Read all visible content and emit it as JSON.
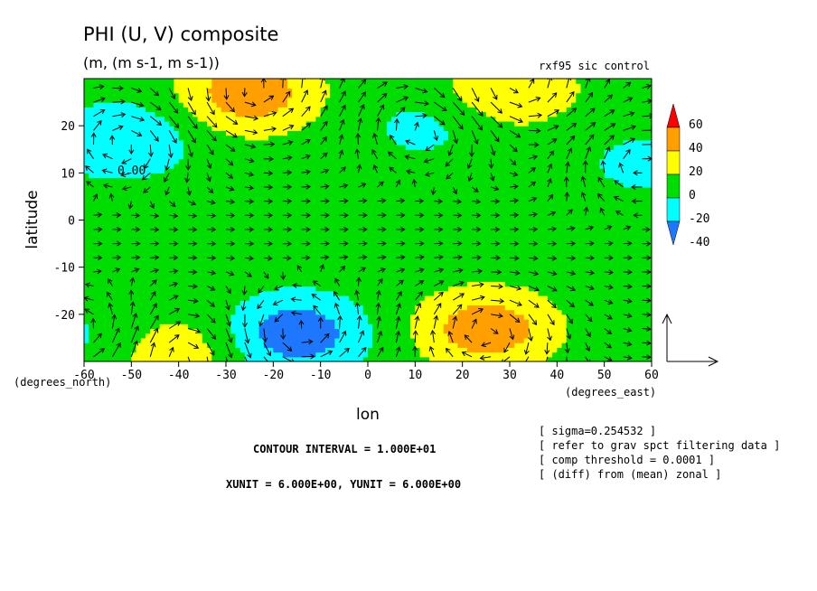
{
  "chart_data": {
    "type": "heatmap",
    "title": "PHI (U, V) composite",
    "subtitle": "(m, (m s-1, m s-1))",
    "top_right_label": "rxf95 sic control",
    "xlabel": "lon",
    "ylabel": "latitude",
    "x_units": "(degrees_east)",
    "y_units": "(degrees_north)",
    "xlim": [
      -60,
      60
    ],
    "ylim": [
      -30,
      30
    ],
    "x_ticks": [
      -60,
      -50,
      -40,
      -30,
      -20,
      -10,
      0,
      10,
      20,
      30,
      40,
      50,
      60
    ],
    "x_tick_labels": [
      "-60",
      "-50",
      "-40",
      "-30",
      "-20",
      "-10",
      "0",
      "10",
      "20",
      "30",
      "40",
      "50",
      "60"
    ],
    "y_ticks": [
      -20,
      -10,
      0,
      10,
      20
    ],
    "y_tick_labels": [
      "-20",
      "-10",
      "0",
      "10",
      "20"
    ],
    "contour_label": "0.00",
    "colorbar": {
      "levels": [
        -40,
        -20,
        0,
        20,
        40,
        60
      ],
      "labels": [
        "-40",
        "-20",
        "0",
        "20",
        "40",
        "60"
      ],
      "colors": [
        "#1e78ff",
        "#00ffff",
        "#00dd00",
        "#ffff00",
        "#ffa000",
        "#ff0000"
      ]
    },
    "contour_interval_text": "CONTOUR INTERVAL = 1.000E+01",
    "unit_text": "XUNIT = 6.000E+00, YUNIT = 6.000E+00",
    "notes": [
      "[ sigma=0.254532 ]",
      "[ refer to grav spct filtering data ]",
      "[ comp threshold = 0.0001 ]",
      "[ (diff) from (mean) zonal ]"
    ],
    "field_centers": [
      {
        "lon": -25,
        "lat": 27,
        "value": 45
      },
      {
        "lon": 30,
        "lat": 28,
        "value": 30
      },
      {
        "lon": -52,
        "lat": 17,
        "value": -30
      },
      {
        "lon": 12,
        "lat": 20,
        "value": -15
      },
      {
        "lon": -15,
        "lat": -24,
        "value": -45
      },
      {
        "lon": 25,
        "lat": -23,
        "value": 45
      },
      {
        "lon": -42,
        "lat": -28,
        "value": 25
      },
      {
        "lon": -58,
        "lat": -25,
        "value": -15
      },
      {
        "lon": 58,
        "lat": 12,
        "value": -15
      }
    ]
  }
}
